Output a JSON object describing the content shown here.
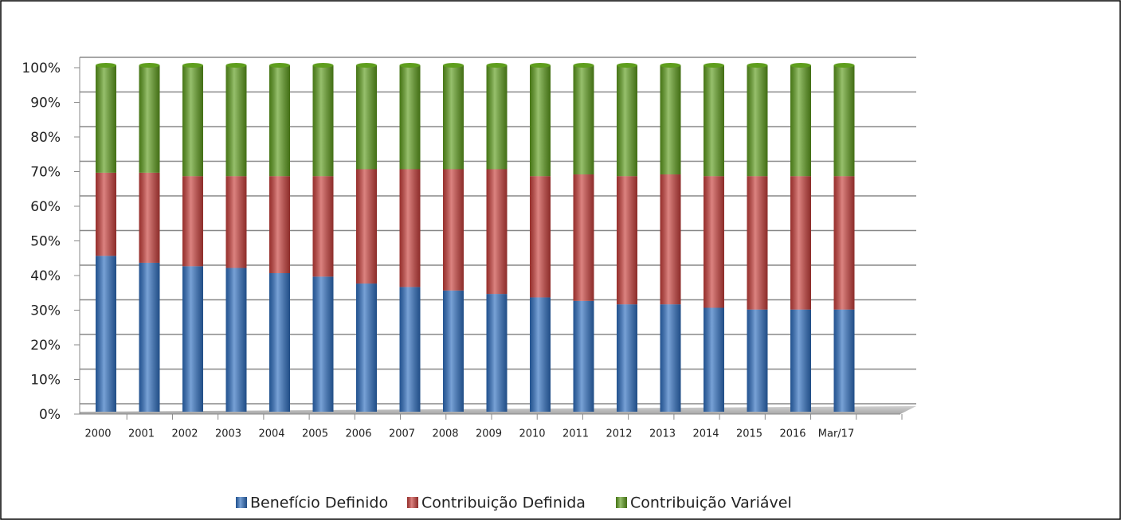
{
  "chart_data": {
    "type": "bar",
    "stacked": true,
    "categories": [
      "2000",
      "2001",
      "2002",
      "2003",
      "2004",
      "2005",
      "2006",
      "2007",
      "2008",
      "2009",
      "2010",
      "2011",
      "2012",
      "2013",
      "2014",
      "2015",
      "2016",
      "Mar/17"
    ],
    "series": [
      {
        "name": "Benefício Definido",
        "color": "#2f6fc0",
        "values": [
          45,
          43,
          42,
          41.5,
          40,
          39,
          37,
          36,
          35,
          34,
          33,
          32,
          31,
          31,
          30,
          29.5,
          29.5,
          29.5
        ]
      },
      {
        "name": "Contribuição Definida",
        "color": "#c9403c",
        "values": [
          24,
          26,
          26,
          26.5,
          28,
          29,
          33,
          34,
          35,
          36,
          35,
          36.5,
          37,
          37.5,
          38,
          38.5,
          38.5,
          38.5
        ]
      },
      {
        "name": "Contribuição Variável",
        "color": "#5f9e1e",
        "values": [
          31,
          31,
          32,
          32,
          32,
          32,
          30,
          30,
          30,
          30,
          32,
          31.5,
          32,
          31.5,
          32,
          32,
          32,
          32
        ]
      }
    ],
    "ylim": [
      0,
      100
    ],
    "yticks": [
      {
        "value": 0,
        "label": "0%"
      },
      {
        "value": 10,
        "label": "10%"
      },
      {
        "value": 20,
        "label": "20%"
      },
      {
        "value": 30,
        "label": "30%"
      },
      {
        "value": 40,
        "label": "40%"
      },
      {
        "value": 50,
        "label": "50%"
      },
      {
        "value": 60,
        "label": "60%"
      },
      {
        "value": 70,
        "label": "70%"
      },
      {
        "value": 80,
        "label": "80%"
      },
      {
        "value": 90,
        "label": "90%"
      },
      {
        "value": 100,
        "label": "100%"
      }
    ],
    "grid": true,
    "legend": "bottom"
  }
}
